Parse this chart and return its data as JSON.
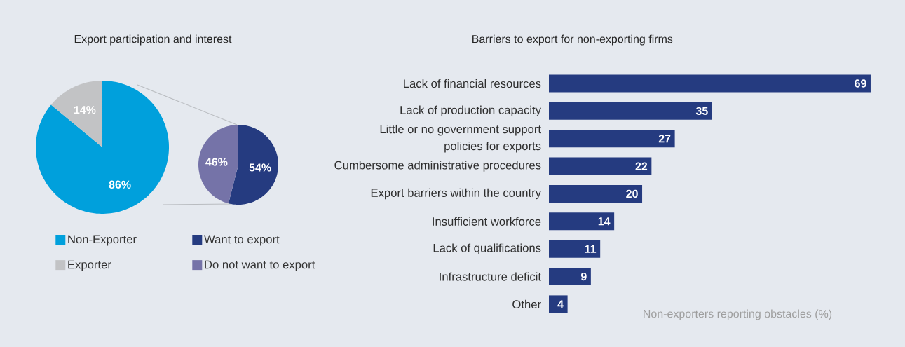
{
  "chart_data": [
    {
      "type": "pie",
      "title": "Export participation and interest",
      "categories": [
        "Non-Exporter",
        "Exporter"
      ],
      "values": [
        86,
        14
      ],
      "colors": [
        "#00a0dc",
        "#c2c3c5"
      ],
      "value_labels": [
        "86%",
        "14%"
      ],
      "legend": "bottom"
    },
    {
      "type": "pie",
      "categories": [
        "Want to export",
        "Do not want to export"
      ],
      "values": [
        54,
        46
      ],
      "colors": [
        "#253b80",
        "#7573a8"
      ],
      "value_labels": [
        "54%",
        "46%"
      ],
      "legend": "bottom"
    },
    {
      "type": "bar",
      "orientation": "horizontal",
      "title": "Barriers to export for non-exporting firms",
      "xlabel": "Non-exporters reporting obstacles (%)",
      "categories": [
        "Lack of financial resources",
        "Lack of production capacity",
        "Little or no government support policies for exports",
        "Cumbersome administrative procedures",
        "Export barriers within the country",
        "Insufficient workforce",
        "Lack of qualifications",
        "Infrastructure deficit",
        "Other"
      ],
      "values": [
        69,
        35,
        27,
        22,
        20,
        14,
        11,
        9,
        4
      ],
      "color": "#253b80",
      "data_labels": true
    }
  ]
}
